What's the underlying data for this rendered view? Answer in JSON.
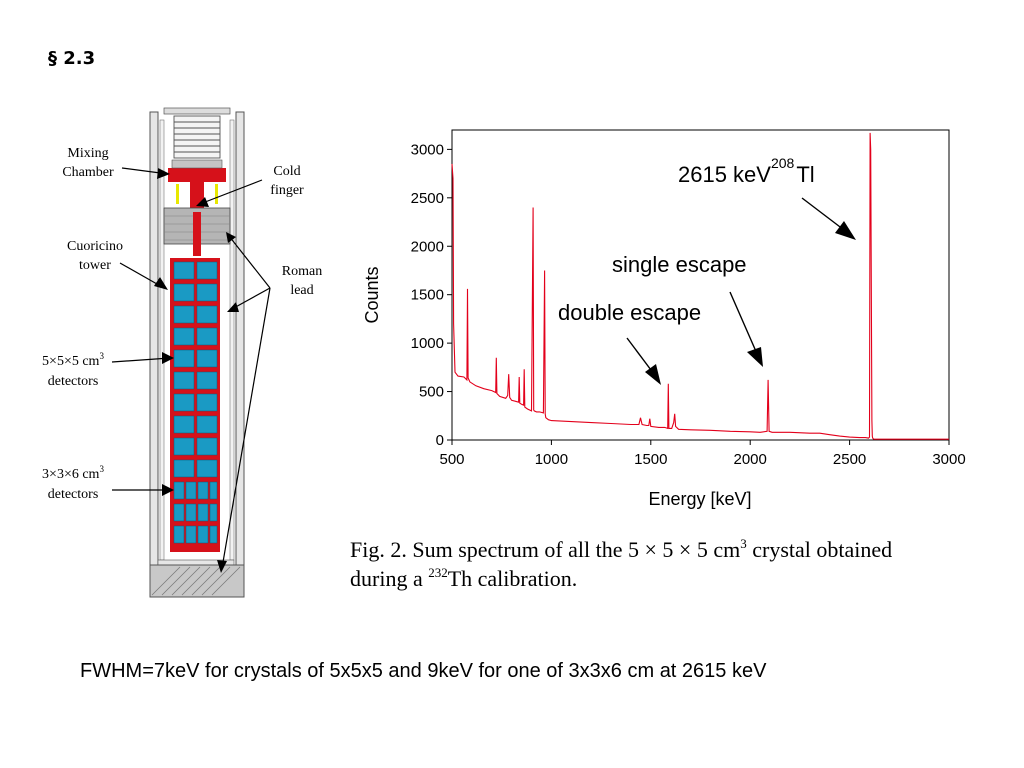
{
  "slide": {
    "section": "§ 2.3",
    "footer": "FWHM=7keV for crystals of  5x5x5 and 9keV for one of 3x3x6 cm at 2615 keV"
  },
  "diagram": {
    "labels": {
      "mixing_chamber": [
        "Mixing",
        "Chamber"
      ],
      "cold_finger": [
        "Cold",
        "finger"
      ],
      "cuoricino_tower": [
        "Cuoricino",
        "tower"
      ],
      "roman_lead": [
        "Roman",
        "lead"
      ],
      "det_555": {
        "line1": "5×5×5 cm",
        "sup": "3",
        "line2": "detectors"
      },
      "det_336": {
        "line1": "3×3×6 cm",
        "sup": "3",
        "line2": "detectors"
      }
    },
    "colors": {
      "detector": "#1a9ac4",
      "frame": "#d6111a",
      "lead": "#a8a8a8"
    }
  },
  "caption": {
    "p1": "Fig. 2.  Sum spectrum of all the 5 × 5 × 5 cm",
    "sup1": "3",
    "p2": " crystal obtained",
    "p3": "during a ",
    "sup2": "232",
    "p4": "Th calibration."
  },
  "chart_data": {
    "type": "line",
    "xlabel": "Energy [keV]",
    "ylabel": "Counts",
    "xlim": [
      500,
      3000
    ],
    "ylim": [
      0,
      3200
    ],
    "xticks": [
      500,
      1000,
      1500,
      2000,
      2500,
      3000
    ],
    "yticks": [
      0,
      500,
      1000,
      1500,
      2000,
      2500,
      3000
    ],
    "line_color": "#e3001b",
    "series": [
      {
        "x": [
          500,
          505,
          508,
          515,
          530,
          560,
          575,
          578,
          581,
          590,
          620,
          660,
          700,
          720,
          723,
          726,
          740,
          770,
          780,
          785,
          790,
          800,
          820,
          835,
          838,
          841,
          850,
          860,
          863,
          866,
          880,
          900,
          908,
          911,
          914,
          925,
          940,
          960,
          966,
          969,
          972,
          985,
          1000,
          1100,
          1200,
          1300,
          1400,
          1440,
          1448,
          1456,
          1480,
          1490,
          1495,
          1500,
          1540,
          1570,
          1585,
          1588,
          1591,
          1605,
          1615,
          1620,
          1625,
          1640,
          1700,
          1800,
          1900,
          2000,
          2050,
          2085,
          2090,
          2095,
          2110,
          2200,
          2300,
          2350,
          2400,
          2450,
          2500,
          2550,
          2580,
          2595,
          2600,
          2603,
          2606,
          2612,
          2614,
          2616,
          2620,
          2625,
          2650,
          2700,
          2800,
          2900,
          3000
        ],
        "y": [
          2850,
          2700,
          1200,
          700,
          660,
          650,
          620,
          1560,
          640,
          600,
          560,
          530,
          510,
          490,
          850,
          480,
          450,
          430,
          460,
          680,
          440,
          410,
          400,
          390,
          650,
          380,
          370,
          360,
          730,
          340,
          320,
          300,
          2400,
          310,
          300,
          290,
          290,
          280,
          1750,
          270,
          230,
          210,
          200,
          190,
          180,
          170,
          160,
          160,
          230,
          160,
          150,
          150,
          220,
          140,
          130,
          130,
          120,
          580,
          120,
          120,
          180,
          270,
          140,
          110,
          105,
          100,
          90,
          85,
          80,
          90,
          620,
          90,
          80,
          80,
          70,
          70,
          55,
          40,
          30,
          25,
          25,
          20,
          30,
          3170,
          3000,
          200,
          40,
          20,
          10,
          8,
          8,
          8,
          8,
          8,
          8
        ]
      }
    ],
    "annotations": [
      {
        "text": "2615 keV",
        "sup": "208",
        "tail": "Tl"
      },
      {
        "text": "single escape"
      },
      {
        "text": "double escape"
      }
    ]
  }
}
